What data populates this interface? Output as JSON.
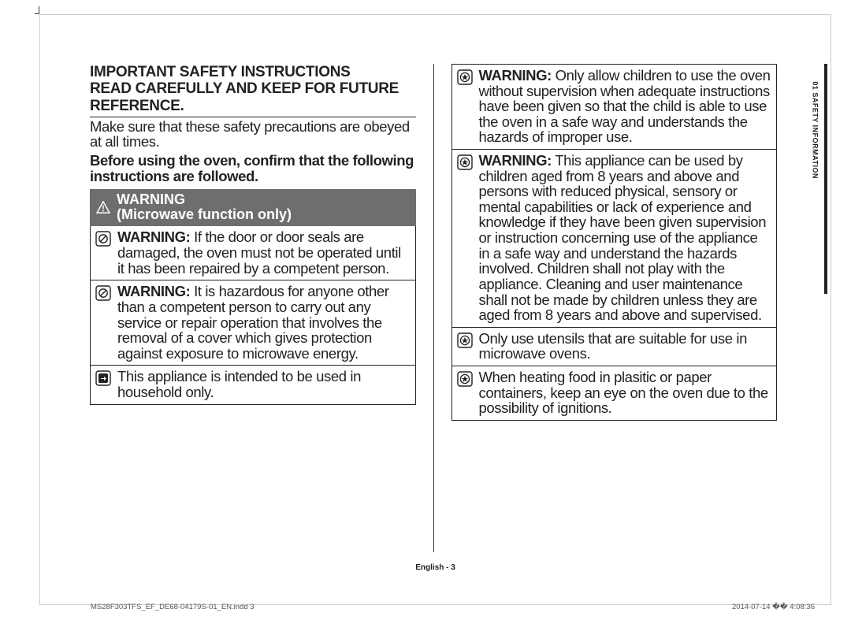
{
  "colors": {
    "page_border": "#cccccc",
    "text": "#222222",
    "warning_bar_bg": "#6e6e6e",
    "warning_bar_text": "#ffffff",
    "rule": "#222222",
    "footer_gray": "#555555"
  },
  "typography": {
    "heading_size_pt": 14,
    "body_size_pt": 14,
    "footer_size_pt": 7,
    "side_label_size_pt": 7
  },
  "heading_line1": "IMPORTANT SAFETY INSTRUCTIONS",
  "heading_line2": "READ CAREFULLY AND KEEP FOR FUTURE REFERENCE.",
  "intro": "Make sure that these safety precautions are obeyed at all times.",
  "intro_bold": "Before using the oven, confirm that the following instructions are followed.",
  "warning_bar": {
    "label": "WARNING",
    "sub": "(Microwave function only)"
  },
  "left_items": [
    {
      "icon": "prohibit",
      "bold": "WARNING:",
      "text": " If the door or door seals are damaged, the oven must not be operated until it has been repaired by a competent person."
    },
    {
      "icon": "prohibit",
      "bold": "WARNING:",
      "text": " It is hazardous for anyone other than a competent person to carry out any service or repair operation that involves the removal of a cover which gives protection against exposure to microwave energy."
    },
    {
      "icon": "solid-arrow",
      "bold": "",
      "text": "This appliance is intended to be used in household only."
    }
  ],
  "right_items": [
    {
      "icon": "star",
      "bold": "WARNING:",
      "text": " Only allow children to use the oven without supervision when adequate instructions have been given so that the child is able to use the oven in a safe way and understands the hazards of improper use."
    },
    {
      "icon": "star",
      "bold": "WARNING:",
      "text": " This appliance can be used by children aged from 8 years and above and persons with reduced physical, sensory or mental capabilities or lack of experience and knowledge if they have been given supervision or instruction concerning use of the appliance in a safe way and understand the hazards involved. Children shall not play with the appliance. Cleaning and user maintenance shall not be made by children unless they are aged from 8 years and above and supervised."
    },
    {
      "icon": "star",
      "bold": "",
      "text": "Only use utensils that are suitable for use in microwave ovens."
    },
    {
      "icon": "star",
      "bold": "",
      "text": "When heating food in plasitic or paper containers, keep an eye on the oven due to the possibility of ignitions."
    }
  ],
  "side_tab": "01  SAFETY INFORMATION",
  "footer_center": "English - 3",
  "footer_left": "MS28F303TFS_EF_DE68-04179S-01_EN.indd   3",
  "footer_right": "2014-07-14   �� 4:08:36"
}
